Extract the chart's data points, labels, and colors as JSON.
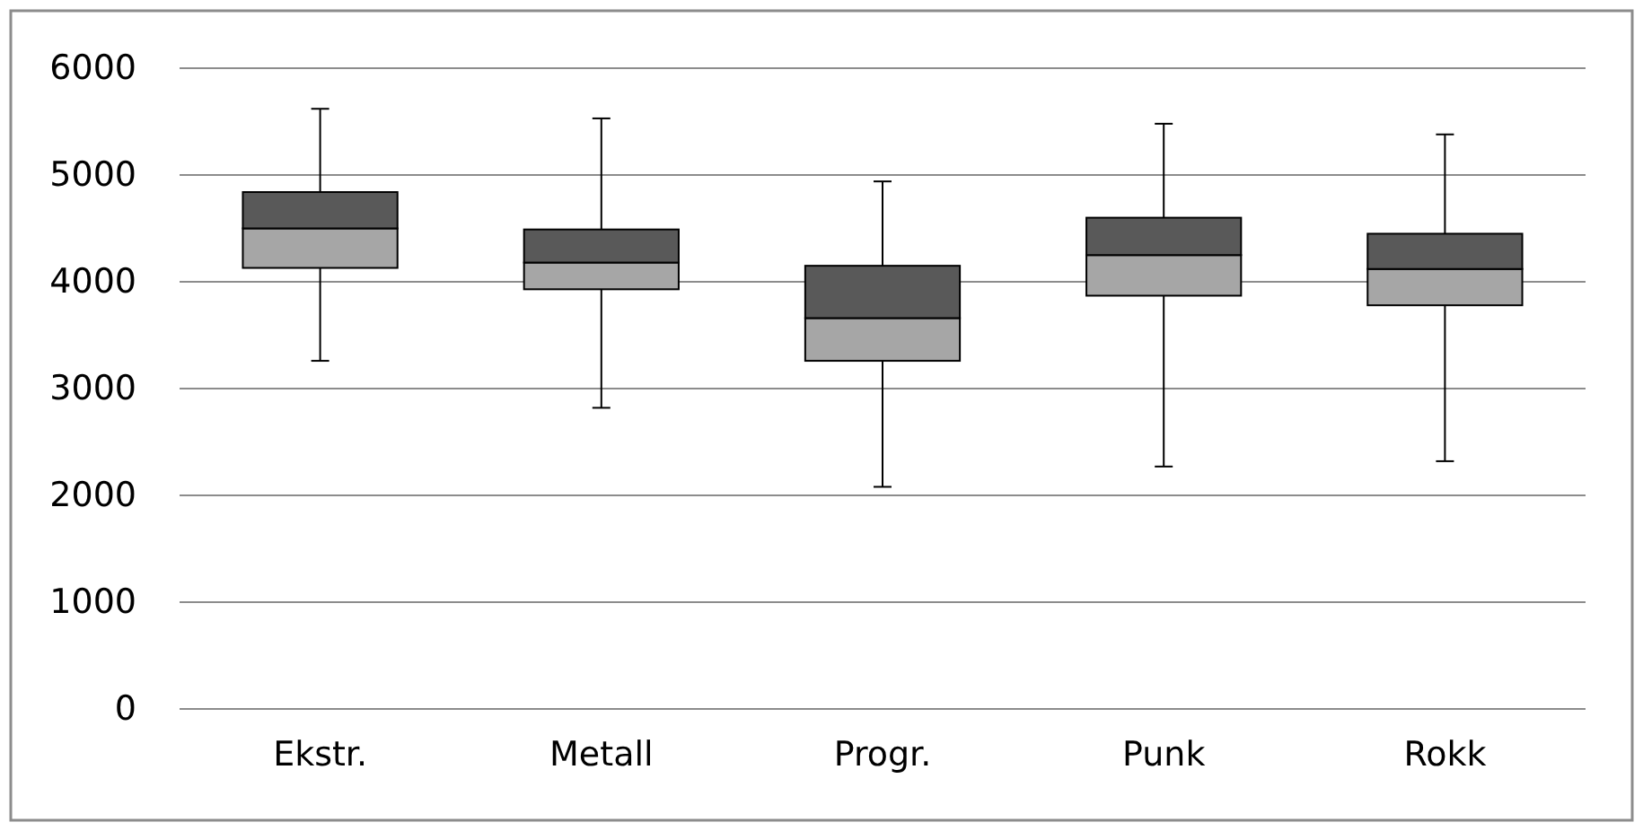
{
  "chart_data": {
    "type": "box",
    "categories": [
      "Ekstr.",
      "Metall",
      "Progr.",
      "Punk",
      "Rokk"
    ],
    "series": [
      {
        "colors": [
          [
            "#a6a6a6",
            "#595959"
          ],
          [
            "#a6a6a6",
            "#595959"
          ],
          [
            "#a6a6a6",
            "#595959"
          ],
          [
            "#a6a6a6",
            "#595959"
          ],
          [
            "#a6a6a6",
            "#595959"
          ]
        ],
        "boxes": [
          {
            "low": 3260,
            "q1": 4130,
            "median": 4500,
            "q3": 4840,
            "high": 5620
          },
          {
            "low": 2820,
            "q1": 3930,
            "median": 4180,
            "q3": 4490,
            "high": 5530
          },
          {
            "low": 2080,
            "q1": 3260,
            "median": 3660,
            "q3": 4150,
            "high": 4940
          },
          {
            "low": 2270,
            "q1": 3870,
            "median": 4250,
            "q3": 4600,
            "high": 5480
          },
          {
            "low": 2320,
            "q1": 3780,
            "median": 4120,
            "q3": 4450,
            "high": 5380
          }
        ]
      }
    ],
    "ylim": [
      0,
      6000
    ],
    "yticks": [
      0,
      1000,
      2000,
      3000,
      4000,
      5000,
      6000
    ],
    "grid": "y"
  }
}
